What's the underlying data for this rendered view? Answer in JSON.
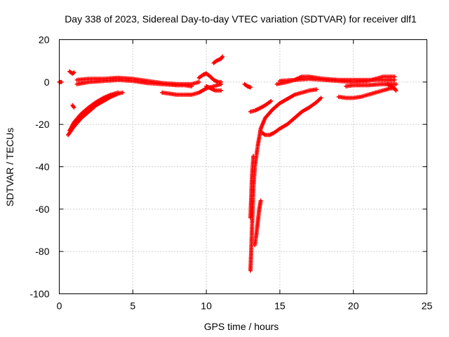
{
  "chart_data": {
    "type": "scatter",
    "title": "Day 338 of 2023, Sidereal Day-to-day VTEC variation (SDTVAR) for receiver dlf1",
    "xlabel": "GPS time / hours",
    "ylabel": "SDTVAR / TECUs",
    "xlim": [
      0,
      25
    ],
    "ylim": [
      -100,
      20
    ],
    "xticks": [
      0,
      5,
      10,
      15,
      20,
      25
    ],
    "yticks": [
      -100,
      -80,
      -60,
      -40,
      -20,
      0,
      20
    ],
    "grid": true,
    "marker": "+",
    "series": [
      {
        "name": "SDTVAR",
        "color": "#ff0000",
        "segments": [
          {
            "x": [
              0.0,
              0.15
            ],
            "y": [
              0,
              0
            ]
          },
          {
            "x": [
              0.7,
              0.9,
              1.0
            ],
            "y": [
              5,
              4,
              4.5
            ]
          },
          {
            "x": [
              0.9,
              1.0
            ],
            "y": [
              -11,
              -12
            ]
          },
          {
            "x": [
              0.6,
              1.0,
              1.5,
              2.0,
              2.5,
              3.0,
              3.5,
              4.0,
              4.3
            ],
            "y": [
              -25,
              -21,
              -17,
              -14,
              -11,
              -9,
              -7,
              -5.5,
              -5
            ]
          },
          {
            "x": [
              0.7,
              1.0,
              1.5,
              2.0,
              2.5,
              3.0,
              3.5,
              4.0
            ],
            "y": [
              -23,
              -19,
              -15,
              -12,
              -9.5,
              -7.5,
              -6,
              -5
            ]
          },
          {
            "x": [
              1.2,
              2.0,
              3.0,
              4.0,
              5.0,
              6.0,
              7.0,
              8.0,
              8.5,
              9.0
            ],
            "y": [
              -1,
              0,
              0.5,
              1,
              0.5,
              -0.5,
              -1,
              -1.5,
              -1.5,
              -2
            ]
          },
          {
            "x": [
              1.2,
              2.0,
              3.0,
              4.0,
              5.0,
              6.0,
              7.0,
              8.0,
              9.0,
              9.5
            ],
            "y": [
              1,
              1.5,
              1.5,
              2,
              1.5,
              0.5,
              -0.5,
              -1,
              -1,
              0
            ]
          },
          {
            "x": [
              7.0,
              7.5,
              8.0,
              8.5,
              9.0,
              9.5,
              10.0,
              10.5,
              11.0
            ],
            "y": [
              -5,
              -5.5,
              -6,
              -6,
              -6,
              -5,
              -3,
              -2,
              -1
            ]
          },
          {
            "x": [
              9.5,
              9.8,
              10.0,
              10.2,
              10.5,
              10.8,
              11.0
            ],
            "y": [
              2,
              3.5,
              4,
              3,
              1,
              0,
              0
            ]
          },
          {
            "x": [
              10.0,
              10.3,
              10.6,
              11.0
            ],
            "y": [
              -2,
              -3,
              -4,
              -4
            ]
          },
          {
            "x": [
              10.5,
              10.7,
              11.0,
              11.1
            ],
            "y": [
              9,
              10,
              11,
              12
            ]
          },
          {
            "x": [
              12.6,
              12.8,
              13.0
            ],
            "y": [
              -1,
              -2,
              -2.5
            ]
          },
          {
            "x": [
              13.0,
              13.3,
              13.6,
              14.0,
              14.4
            ],
            "y": [
              -14,
              -13.5,
              -12.5,
              -11,
              -9
            ]
          },
          {
            "x": [
              13.0,
              13.05,
              13.1,
              13.15,
              13.2,
              13.3,
              13.5,
              13.7,
              14.0,
              14.5,
              15.0,
              15.5,
              16.0,
              16.5,
              17.0,
              17.5
            ],
            "y": [
              -89,
              -80,
              -70,
              -60,
              -50,
              -40,
              -30,
              -22,
              -17,
              -13,
              -10,
              -8,
              -6,
              -5,
              -4,
              -3.5
            ]
          },
          {
            "x": [
              13.0,
              13.05,
              13.1,
              13.2
            ],
            "y": [
              -64,
              -55,
              -45,
              -35
            ]
          },
          {
            "x": [
              13.3,
              13.4,
              13.5,
              13.6,
              13.7
            ],
            "y": [
              -77,
              -72,
              -66,
              -60,
              -56
            ]
          },
          {
            "x": [
              13.8,
              14.0,
              14.3,
              14.6,
              15.0,
              15.5,
              16.0,
              16.5,
              17.0,
              17.5,
              17.8
            ],
            "y": [
              -24,
              -25,
              -25,
              -24,
              -22,
              -20,
              -17,
              -14,
              -12,
              -9.5,
              -7.5
            ]
          },
          {
            "x": [
              14.8,
              15.5,
              16.0,
              16.5,
              17.0,
              17.5,
              18.0,
              19.0,
              20.0,
              21.0,
              22.0,
              22.8
            ],
            "y": [
              -1,
              0,
              1,
              2.5,
              2.5,
              2,
              1.5,
              1,
              1,
              1,
              1,
              1
            ]
          },
          {
            "x": [
              15.0,
              16.0,
              17.0,
              18.0,
              19.0,
              20.0,
              21.0,
              22.0,
              22.8
            ],
            "y": [
              0.5,
              1,
              1.5,
              1,
              0.5,
              0,
              0.5,
              2.5,
              2.5
            ]
          },
          {
            "x": [
              19.0,
              19.5,
              20.0,
              20.5,
              21.0,
              21.5,
              22.0,
              22.5,
              22.8
            ],
            "y": [
              -7,
              -7.5,
              -7.5,
              -7,
              -6,
              -5,
              -4,
              -3,
              -3
            ]
          },
          {
            "x": [
              19.5,
              20.0,
              20.5,
              21.0,
              21.5,
              22.0,
              22.5,
              22.9
            ],
            "y": [
              -2,
              -1.5,
              -1.5,
              -1.5,
              -1.2,
              -1,
              -1,
              -1
            ]
          },
          {
            "x": [
              22.3,
              22.6,
              22.8,
              22.9
            ],
            "y": [
              -1,
              -2,
              -3,
              -4
            ]
          }
        ]
      }
    ]
  }
}
